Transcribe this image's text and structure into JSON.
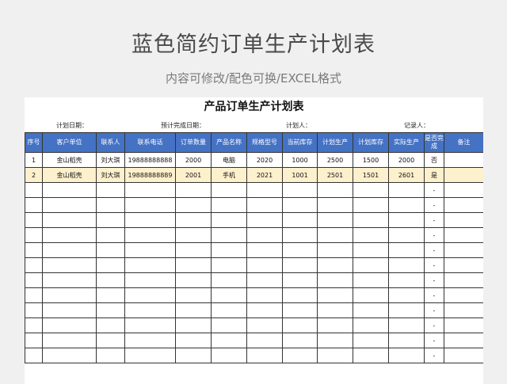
{
  "banner": {
    "title": "蓝色简约订单生产计划表",
    "subtitle": "内容可修改/配色可换/EXCEL格式"
  },
  "sheet": {
    "title": "产品订单生产计划表",
    "info": {
      "plan_date": "计划日期：",
      "expected_date": "预计完成日期：",
      "planner": "计划人：",
      "recorder": "记录人："
    },
    "columns": [
      "序号",
      "客户单位",
      "联系人",
      "联系电话",
      "订单数量",
      "产品名称",
      "规格型号",
      "当前库存",
      "计划生产",
      "计划库存",
      "实际生产",
      "是否完成",
      "备注"
    ],
    "rows": [
      [
        "1",
        "金山稻壳",
        "刘大琪",
        "19888888888",
        "2000",
        "电脑",
        "2020",
        "1000",
        "2500",
        "1500",
        "2000",
        "否",
        ""
      ],
      [
        "2",
        "金山稻壳",
        "刘大琪",
        "19888888889",
        "2001",
        "手机",
        "2021",
        "1001",
        "2501",
        "1501",
        "2601",
        "是",
        ""
      ]
    ],
    "empty_row_mark": "-",
    "highlight_row": 1
  }
}
